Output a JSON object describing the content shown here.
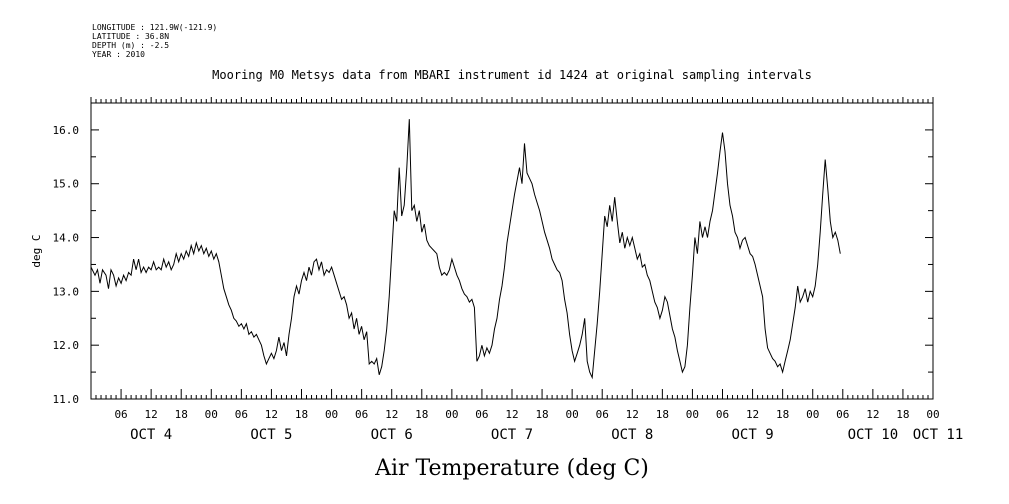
{
  "header": {
    "longitude": "LONGITUDE : 121.9W(-121.9)",
    "latitude": "LATITUDE : 36.8N",
    "depth": "DEPTH (m) : -2.5",
    "year": "YEAR : 2010"
  },
  "chart_data": {
    "type": "line",
    "title": "Mooring M0 Metsys data from MBARI instrument id 1424 at original sampling intervals",
    "xlabel": "Air Temperature (deg C)",
    "ylabel": "deg C",
    "ylim": [
      11.0,
      16.5
    ],
    "xlim_hours": [
      0,
      168
    ],
    "yticks": [
      "11.0",
      "12.0",
      "13.0",
      "14.0",
      "15.0",
      "16.0"
    ],
    "xtick_hour_labels": [
      "06",
      "12",
      "18",
      "00",
      "06",
      "12",
      "18",
      "00",
      "06",
      "12",
      "18",
      "00",
      "06",
      "12",
      "18",
      "00",
      "06",
      "12",
      "18",
      "00",
      "06",
      "12",
      "18",
      "00",
      "06",
      "12",
      "18",
      "00"
    ],
    "day_labels": [
      "OCT  4",
      "OCT  5",
      "OCT  6",
      "OCT  7",
      "OCT  8",
      "OCT  9",
      "OCT 10",
      "OCT 11"
    ],
    "grid": false,
    "series": [
      {
        "name": "",
        "points": [
          [
            0.0,
            13.45
          ],
          [
            0.8,
            13.3
          ],
          [
            1.3,
            13.4
          ],
          [
            1.8,
            13.15
          ],
          [
            2.3,
            13.4
          ],
          [
            3.0,
            13.3
          ],
          [
            3.5,
            13.05
          ],
          [
            4.0,
            13.4
          ],
          [
            4.5,
            13.3
          ],
          [
            5.0,
            13.1
          ],
          [
            5.5,
            13.25
          ],
          [
            6.0,
            13.15
          ],
          [
            6.5,
            13.3
          ],
          [
            7.0,
            13.2
          ],
          [
            7.5,
            13.35
          ],
          [
            8.0,
            13.3
          ],
          [
            8.5,
            13.6
          ],
          [
            9.0,
            13.4
          ],
          [
            9.5,
            13.6
          ],
          [
            10.0,
            13.35
          ],
          [
            10.5,
            13.45
          ],
          [
            11.0,
            13.35
          ],
          [
            11.5,
            13.45
          ],
          [
            12.0,
            13.4
          ],
          [
            12.5,
            13.55
          ],
          [
            13.0,
            13.4
          ],
          [
            13.5,
            13.45
          ],
          [
            14.0,
            13.4
          ],
          [
            14.5,
            13.6
          ],
          [
            15.0,
            13.45
          ],
          [
            15.5,
            13.55
          ],
          [
            16.0,
            13.4
          ],
          [
            16.5,
            13.5
          ],
          [
            17.0,
            13.7
          ],
          [
            17.5,
            13.55
          ],
          [
            18.0,
            13.7
          ],
          [
            18.5,
            13.6
          ],
          [
            19.0,
            13.75
          ],
          [
            19.5,
            13.65
          ],
          [
            20.0,
            13.85
          ],
          [
            20.5,
            13.7
          ],
          [
            21.0,
            13.9
          ],
          [
            21.5,
            13.75
          ],
          [
            22.0,
            13.85
          ],
          [
            22.5,
            13.7
          ],
          [
            23.0,
            13.8
          ],
          [
            23.5,
            13.65
          ],
          [
            24.0,
            13.75
          ],
          [
            24.5,
            13.6
          ],
          [
            25.0,
            13.7
          ],
          [
            25.5,
            13.55
          ],
          [
            26.0,
            13.3
          ],
          [
            26.5,
            13.05
          ],
          [
            27.0,
            12.9
          ],
          [
            27.5,
            12.75
          ],
          [
            28.0,
            12.65
          ],
          [
            28.5,
            12.5
          ],
          [
            29.0,
            12.45
          ],
          [
            29.5,
            12.35
          ],
          [
            30.0,
            12.4
          ],
          [
            30.5,
            12.3
          ],
          [
            31.0,
            12.4
          ],
          [
            31.5,
            12.2
          ],
          [
            32.0,
            12.25
          ],
          [
            32.5,
            12.15
          ],
          [
            33.0,
            12.2
          ],
          [
            33.5,
            12.1
          ],
          [
            34.0,
            12.0
          ],
          [
            34.5,
            11.8
          ],
          [
            35.0,
            11.65
          ],
          [
            35.5,
            11.75
          ],
          [
            36.0,
            11.85
          ],
          [
            36.5,
            11.75
          ],
          [
            37.0,
            11.9
          ],
          [
            37.5,
            12.15
          ],
          [
            38.0,
            11.9
          ],
          [
            38.5,
            12.05
          ],
          [
            39.0,
            11.8
          ],
          [
            39.5,
            12.2
          ],
          [
            40.0,
            12.5
          ],
          [
            40.5,
            12.9
          ],
          [
            41.0,
            13.1
          ],
          [
            41.5,
            12.95
          ],
          [
            42.0,
            13.2
          ],
          [
            42.5,
            13.35
          ],
          [
            43.0,
            13.2
          ],
          [
            43.5,
            13.45
          ],
          [
            44.0,
            13.3
          ],
          [
            44.5,
            13.55
          ],
          [
            45.0,
            13.6
          ],
          [
            45.5,
            13.4
          ],
          [
            46.0,
            13.55
          ],
          [
            46.5,
            13.3
          ],
          [
            47.0,
            13.4
          ],
          [
            47.5,
            13.35
          ],
          [
            48.0,
            13.45
          ],
          [
            48.5,
            13.3
          ],
          [
            49.0,
            13.15
          ],
          [
            49.5,
            13.0
          ],
          [
            50.0,
            12.85
          ],
          [
            50.5,
            12.9
          ],
          [
            51.0,
            12.75
          ],
          [
            51.5,
            12.5
          ],
          [
            52.0,
            12.6
          ],
          [
            52.5,
            12.3
          ],
          [
            53.0,
            12.5
          ],
          [
            53.5,
            12.2
          ],
          [
            54.0,
            12.35
          ],
          [
            54.5,
            12.1
          ],
          [
            55.0,
            12.25
          ],
          [
            55.5,
            11.65
          ],
          [
            56.0,
            11.7
          ],
          [
            56.5,
            11.65
          ],
          [
            57.0,
            11.75
          ],
          [
            57.5,
            11.45
          ],
          [
            58.0,
            11.6
          ],
          [
            58.5,
            11.9
          ],
          [
            59.0,
            12.3
          ],
          [
            59.5,
            12.9
          ],
          [
            60.0,
            13.7
          ],
          [
            60.5,
            14.5
          ],
          [
            61.0,
            14.3
          ],
          [
            61.5,
            15.3
          ],
          [
            62.0,
            14.4
          ],
          [
            62.5,
            14.6
          ],
          [
            63.0,
            15.3
          ],
          [
            63.5,
            16.2
          ],
          [
            64.0,
            14.5
          ],
          [
            64.5,
            14.6
          ],
          [
            65.0,
            14.3
          ],
          [
            65.5,
            14.5
          ],
          [
            66.0,
            14.1
          ],
          [
            66.5,
            14.25
          ],
          [
            67.0,
            13.95
          ],
          [
            67.5,
            13.85
          ],
          [
            68.0,
            13.8
          ],
          [
            68.5,
            13.75
          ],
          [
            69.0,
            13.7
          ],
          [
            69.5,
            13.45
          ],
          [
            70.0,
            13.3
          ],
          [
            70.5,
            13.35
          ],
          [
            71.0,
            13.3
          ],
          [
            71.5,
            13.4
          ],
          [
            72.0,
            13.6
          ],
          [
            72.5,
            13.45
          ],
          [
            73.0,
            13.3
          ],
          [
            73.5,
            13.2
          ],
          [
            74.0,
            13.05
          ],
          [
            74.5,
            12.95
          ],
          [
            75.0,
            12.9
          ],
          [
            75.5,
            12.8
          ],
          [
            76.0,
            12.85
          ],
          [
            76.5,
            12.7
          ],
          [
            77.0,
            11.7
          ],
          [
            77.5,
            11.8
          ],
          [
            78.0,
            12.0
          ],
          [
            78.5,
            11.8
          ],
          [
            79.0,
            11.95
          ],
          [
            79.5,
            11.85
          ],
          [
            80.0,
            12.0
          ],
          [
            80.5,
            12.3
          ],
          [
            81.0,
            12.5
          ],
          [
            81.5,
            12.85
          ],
          [
            82.0,
            13.1
          ],
          [
            82.5,
            13.45
          ],
          [
            83.0,
            13.9
          ],
          [
            83.5,
            14.2
          ],
          [
            84.0,
            14.5
          ],
          [
            84.5,
            14.8
          ],
          [
            85.0,
            15.05
          ],
          [
            85.5,
            15.3
          ],
          [
            86.0,
            15.0
          ],
          [
            86.5,
            15.75
          ],
          [
            87.0,
            15.2
          ],
          [
            87.5,
            15.1
          ],
          [
            88.0,
            15.0
          ],
          [
            88.5,
            14.8
          ],
          [
            89.0,
            14.65
          ],
          [
            89.5,
            14.5
          ],
          [
            90.0,
            14.3
          ],
          [
            90.5,
            14.1
          ],
          [
            91.0,
            13.95
          ],
          [
            91.5,
            13.8
          ],
          [
            92.0,
            13.6
          ],
          [
            92.5,
            13.5
          ],
          [
            93.0,
            13.4
          ],
          [
            93.5,
            13.35
          ],
          [
            94.0,
            13.2
          ],
          [
            94.5,
            12.85
          ],
          [
            95.0,
            12.6
          ],
          [
            95.5,
            12.2
          ],
          [
            96.0,
            11.9
          ],
          [
            96.5,
            11.7
          ],
          [
            97.0,
            11.85
          ],
          [
            97.5,
            12.0
          ],
          [
            98.0,
            12.2
          ],
          [
            98.5,
            12.5
          ],
          [
            99.0,
            11.7
          ],
          [
            99.5,
            11.5
          ],
          [
            100.0,
            11.4
          ],
          [
            100.5,
            11.9
          ],
          [
            101.0,
            12.4
          ],
          [
            101.5,
            13.0
          ],
          [
            102.0,
            13.7
          ],
          [
            102.5,
            14.4
          ],
          [
            103.0,
            14.2
          ],
          [
            103.5,
            14.6
          ],
          [
            104.0,
            14.3
          ],
          [
            104.5,
            14.75
          ],
          [
            105.0,
            14.3
          ],
          [
            105.5,
            13.9
          ],
          [
            106.0,
            14.1
          ],
          [
            106.5,
            13.8
          ],
          [
            107.0,
            14.0
          ],
          [
            107.5,
            13.85
          ],
          [
            108.0,
            14.0
          ],
          [
            108.5,
            13.8
          ],
          [
            109.0,
            13.6
          ],
          [
            109.5,
            13.7
          ],
          [
            110.0,
            13.45
          ],
          [
            110.5,
            13.5
          ],
          [
            111.0,
            13.3
          ],
          [
            111.5,
            13.2
          ],
          [
            112.0,
            13.0
          ],
          [
            112.5,
            12.8
          ],
          [
            113.0,
            12.7
          ],
          [
            113.5,
            12.5
          ],
          [
            114.0,
            12.65
          ],
          [
            114.5,
            12.9
          ],
          [
            115.0,
            12.8
          ],
          [
            115.5,
            12.55
          ],
          [
            116.0,
            12.3
          ],
          [
            116.5,
            12.15
          ],
          [
            117.0,
            11.9
          ],
          [
            117.5,
            11.7
          ],
          [
            118.0,
            11.5
          ],
          [
            118.5,
            11.6
          ],
          [
            119.0,
            12.0
          ],
          [
            119.5,
            12.7
          ],
          [
            120.0,
            13.3
          ],
          [
            120.5,
            14.0
          ],
          [
            121.0,
            13.7
          ],
          [
            121.5,
            14.3
          ],
          [
            122.0,
            14.0
          ],
          [
            122.5,
            14.2
          ],
          [
            123.0,
            14.0
          ],
          [
            123.5,
            14.3
          ],
          [
            124.0,
            14.5
          ],
          [
            124.5,
            14.85
          ],
          [
            125.0,
            15.2
          ],
          [
            125.5,
            15.6
          ],
          [
            126.0,
            15.95
          ],
          [
            126.5,
            15.6
          ],
          [
            127.0,
            15.0
          ],
          [
            127.5,
            14.6
          ],
          [
            128.0,
            14.4
          ],
          [
            128.5,
            14.1
          ],
          [
            129.0,
            14.0
          ],
          [
            129.5,
            13.8
          ],
          [
            130.0,
            13.95
          ],
          [
            130.5,
            14.0
          ],
          [
            131.0,
            13.85
          ],
          [
            131.5,
            13.7
          ],
          [
            132.0,
            13.65
          ],
          [
            132.5,
            13.5
          ],
          [
            133.0,
            13.3
          ],
          [
            133.5,
            13.1
          ],
          [
            134.0,
            12.9
          ],
          [
            134.5,
            12.3
          ],
          [
            135.0,
            11.95
          ],
          [
            135.5,
            11.85
          ],
          [
            136.0,
            11.75
          ],
          [
            136.5,
            11.7
          ],
          [
            137.0,
            11.6
          ],
          [
            137.5,
            11.65
          ],
          [
            138.0,
            11.5
          ],
          [
            138.5,
            11.7
          ],
          [
            139.0,
            11.9
          ],
          [
            139.5,
            12.1
          ],
          [
            140.0,
            12.4
          ],
          [
            140.5,
            12.7
          ],
          [
            141.0,
            13.1
          ],
          [
            141.5,
            12.8
          ],
          [
            142.0,
            12.9
          ],
          [
            142.5,
            13.05
          ],
          [
            143.0,
            12.8
          ],
          [
            143.5,
            13.0
          ],
          [
            144.0,
            12.9
          ],
          [
            144.5,
            13.1
          ],
          [
            145.0,
            13.5
          ],
          [
            145.5,
            14.1
          ],
          [
            146.0,
            14.8
          ],
          [
            146.5,
            15.45
          ],
          [
            147.0,
            14.9
          ],
          [
            147.5,
            14.3
          ],
          [
            148.0,
            14.0
          ],
          [
            148.5,
            14.1
          ],
          [
            149.0,
            13.95
          ],
          [
            149.5,
            13.7
          ]
        ]
      }
    ]
  }
}
